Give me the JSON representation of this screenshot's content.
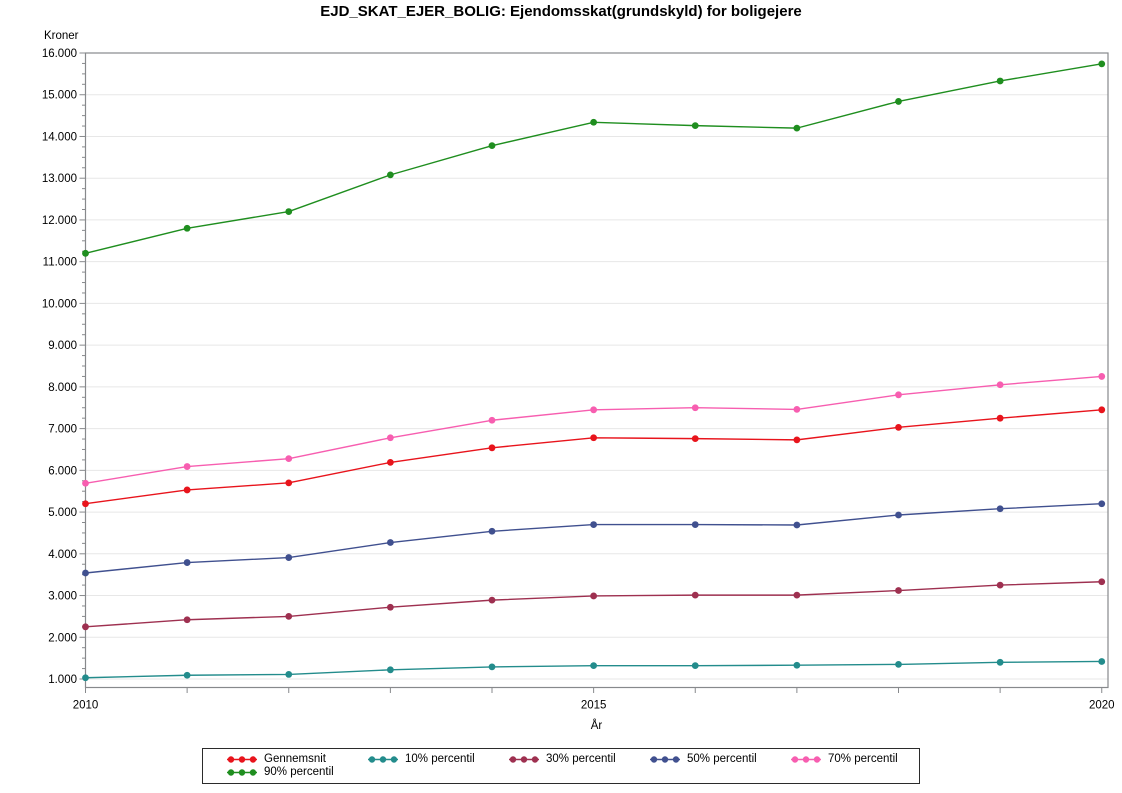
{
  "title": "EJD_SKAT_EJER_BOLIG: Ejendomsskat(grundskyld) for boligejere",
  "chart_data": {
    "type": "line",
    "title": "EJD_SKAT_EJER_BOLIG: Ejendomsskat(grundskyld) for boligejere",
    "xlabel": "År",
    "ylabel": "Kroner",
    "x": [
      2010,
      2011,
      2012,
      2013,
      2014,
      2015,
      2016,
      2017,
      2018,
      2019,
      2020
    ],
    "series": [
      {
        "name": "Gennemsnit",
        "color": "#E8141C",
        "values": [
          5200,
          5530,
          5700,
          6190,
          6540,
          6780,
          6760,
          6730,
          7030,
          7250,
          7450
        ]
      },
      {
        "name": "10% percentil",
        "color": "#238C8C",
        "values": [
          1030,
          1090,
          1110,
          1220,
          1290,
          1320,
          1320,
          1330,
          1350,
          1400,
          1420
        ]
      },
      {
        "name": "30% percentil",
        "color": "#9E3050",
        "values": [
          2250,
          2420,
          2500,
          2720,
          2890,
          2990,
          3010,
          3010,
          3120,
          3250,
          3330
        ]
      },
      {
        "name": "50% percentil",
        "color": "#40508F",
        "values": [
          3540,
          3790,
          3910,
          4270,
          4540,
          4700,
          4700,
          4690,
          4930,
          5080,
          5200
        ]
      },
      {
        "name": "70% percentil",
        "color": "#F75EB0",
        "values": [
          5690,
          6090,
          6280,
          6780,
          7200,
          7450,
          7500,
          7460,
          7810,
          8050,
          8250
        ]
      },
      {
        "name": "90% percentil",
        "color": "#1F8E1F",
        "values": [
          11200,
          11800,
          12200,
          13080,
          13780,
          14340,
          14260,
          14200,
          14840,
          15330,
          15740
        ]
      }
    ],
    "y_ticks": [
      {
        "value": 1000,
        "label": "1.000"
      },
      {
        "value": 2000,
        "label": "2.000"
      },
      {
        "value": 3000,
        "label": "3.000"
      },
      {
        "value": 4000,
        "label": "4.000"
      },
      {
        "value": 5000,
        "label": "5.000"
      },
      {
        "value": 6000,
        "label": "6.000"
      },
      {
        "value": 7000,
        "label": "7.000"
      },
      {
        "value": 8000,
        "label": "8.000"
      },
      {
        "value": 9000,
        "label": "9.000"
      },
      {
        "value": 10000,
        "label": "10.000"
      },
      {
        "value": 11000,
        "label": "11.000"
      },
      {
        "value": 12000,
        "label": "12.000"
      },
      {
        "value": 13000,
        "label": "13.000"
      },
      {
        "value": 14000,
        "label": "14.000"
      },
      {
        "value": 15000,
        "label": "15.000"
      },
      {
        "value": 16000,
        "label": "16.000"
      }
    ],
    "x_ticks_labeled": [
      {
        "value": 2010,
        "label": "2010"
      },
      {
        "value": 2015,
        "label": "2015"
      },
      {
        "value": 2020,
        "label": "2020"
      }
    ],
    "y_minor_step": 250,
    "ylim": [
      796,
      16000
    ],
    "xlim": [
      2010,
      2020.06
    ],
    "grid": "horizontal-major",
    "legend_position": "bottom",
    "marker": "circle"
  },
  "colors": {
    "background": "#FFFFFF",
    "axis": "#87898C",
    "grid": "#E7E7E7",
    "tick_label": "#000000",
    "legend_border": "#2B2B2B"
  }
}
